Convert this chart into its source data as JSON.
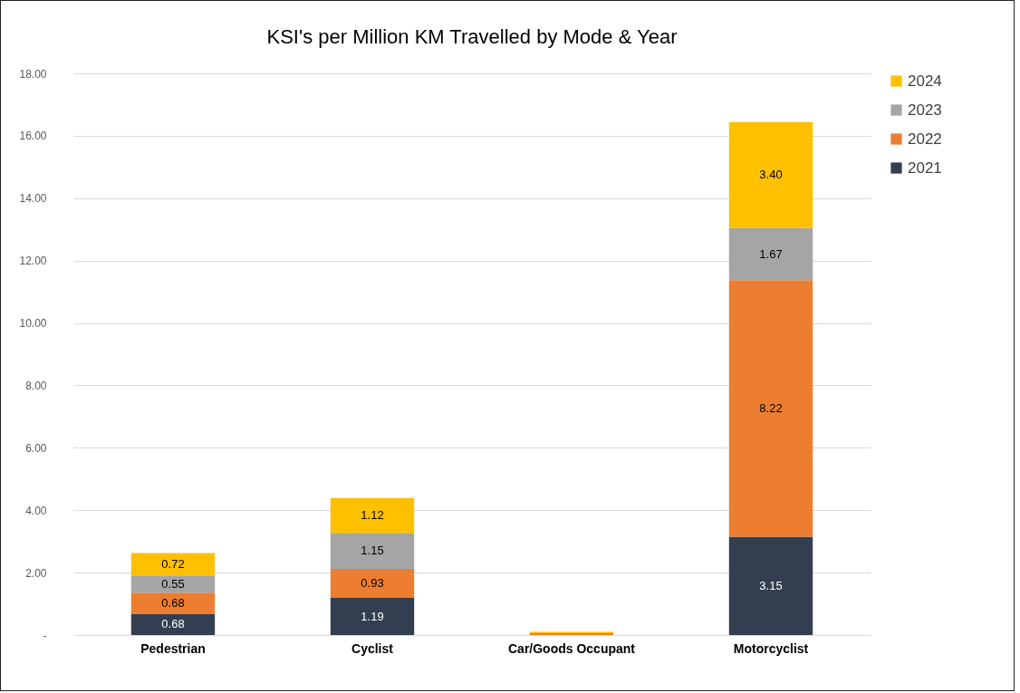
{
  "chart_data": {
    "type": "bar",
    "title": "KSI's per Million KM Travelled by Mode & Year",
    "categories": [
      "Pedestrian",
      "Cyclist",
      "Car/Goods Occupant",
      "Motorcyclist"
    ],
    "stacked": true,
    "series": [
      {
        "name": "2021",
        "color": "#333f50",
        "values": [
          0.68,
          1.19,
          null,
          3.15
        ],
        "value_labels": [
          "0.68",
          "1.19",
          null,
          "3.15"
        ]
      },
      {
        "name": "2022",
        "color": "#ed7d31",
        "values": [
          0.68,
          0.93,
          0.06,
          8.22
        ],
        "value_labels": [
          "0.68",
          "0.93",
          null,
          "8.22"
        ]
      },
      {
        "name": "2023",
        "color": "#a5a5a5",
        "values": [
          0.55,
          1.15,
          null,
          1.67
        ],
        "value_labels": [
          "0.55",
          "1.15",
          null,
          "1.67"
        ]
      },
      {
        "name": "2024",
        "color": "#ffc000",
        "values": [
          0.72,
          1.12,
          0.04,
          3.4
        ],
        "value_labels": [
          "0.72",
          "1.12",
          null,
          "3.40"
        ]
      }
    ],
    "ylim": [
      0,
      18
    ],
    "yticks": [
      {
        "value": 0,
        "label": "-"
      },
      {
        "value": 2,
        "label": "2.00"
      },
      {
        "value": 4,
        "label": "4.00"
      },
      {
        "value": 6,
        "label": "6.00"
      },
      {
        "value": 8,
        "label": "8.00"
      },
      {
        "value": 10,
        "label": "10.00"
      },
      {
        "value": 12,
        "label": "12.00"
      },
      {
        "value": 14,
        "label": "14.00"
      },
      {
        "value": 16,
        "label": "16.00"
      },
      {
        "value": 18,
        "label": "18.00"
      }
    ],
    "grid": "y",
    "legend": "right"
  }
}
